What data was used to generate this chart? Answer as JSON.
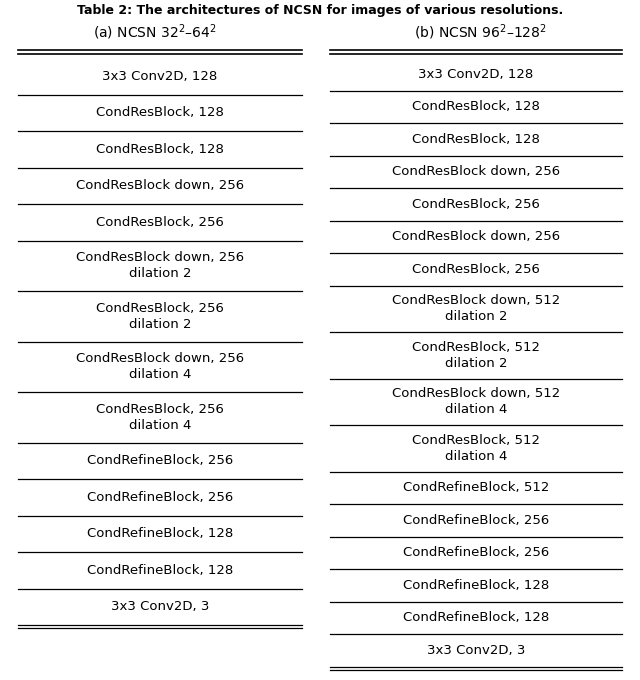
{
  "title": "Table 2: The architectures of NCSN for images of various resolutions.",
  "col_a_header": "(a) NCSN 32$^2$–64$^2$",
  "col_b_header": "(b) NCSN 96$^2$–128$^2$",
  "col_a_rows": [
    "3x3 Conv2D, 128",
    "CondResBlock, 128",
    "CondResBlock, 128",
    "CondResBlock down, 256",
    "CondResBlock, 256",
    "CondResBlock down, 256\ndilation 2",
    "CondResBlock, 256\ndilation 2",
    "CondResBlock down, 256\ndilation 4",
    "CondResBlock, 256\ndilation 4",
    "CondRefineBlock, 256",
    "CondRefineBlock, 256",
    "CondRefineBlock, 128",
    "CondRefineBlock, 128",
    "3x3 Conv2D, 3"
  ],
  "col_b_rows": [
    "3x3 Conv2D, 128",
    "CondResBlock, 128",
    "CondResBlock, 128",
    "CondResBlock down, 256",
    "CondResBlock, 256",
    "CondResBlock down, 256",
    "CondResBlock, 256",
    "CondResBlock down, 512\ndilation 2",
    "CondResBlock, 512\ndilation 2",
    "CondResBlock down, 512\ndilation 4",
    "CondResBlock, 512\ndilation 4",
    "CondRefineBlock, 512",
    "CondRefineBlock, 256",
    "CondRefineBlock, 256",
    "CondRefineBlock, 128",
    "CondRefineBlock, 128",
    "3x3 Conv2D, 3"
  ],
  "bg_color": "#ffffff",
  "text_color": "#000000",
  "font_size": 9.5,
  "header_font_size": 10,
  "title_font_size": 9
}
